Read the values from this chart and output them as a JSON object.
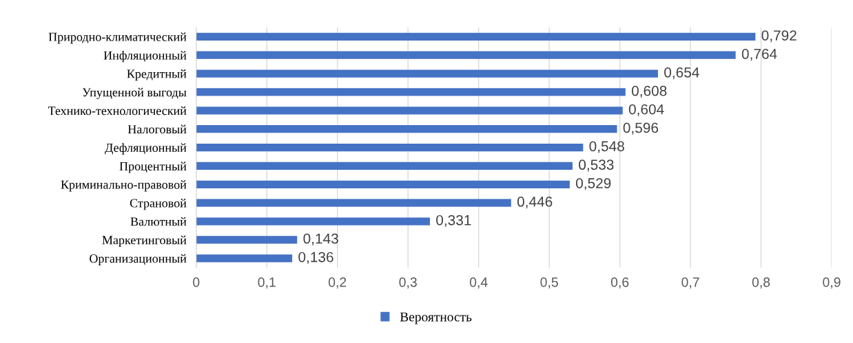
{
  "chart_data": {
    "type": "bar",
    "orientation": "horizontal",
    "categories": [
      "Природно-климатический",
      "Инфляционный",
      "Кредитный",
      "Упущенной выгоды",
      "Технико-технологический",
      "Налоговый",
      "Дефляционный",
      "Процентный",
      "Криминально-правовой",
      "Страновой",
      "Валютный",
      "Маркетинговый",
      "Организационный"
    ],
    "series": [
      {
        "name": "Вероятность",
        "color": "#4472c4",
        "values": [
          0.792,
          0.764,
          0.654,
          0.608,
          0.604,
          0.596,
          0.548,
          0.533,
          0.529,
          0.446,
          0.331,
          0.143,
          0.136
        ],
        "value_labels": [
          "0,792",
          "0,764",
          "0,654",
          "0,608",
          "0,604",
          "0,596",
          "0,548",
          "0,533",
          "0,529",
          "0,446",
          "0,331",
          "0,143",
          "0,136"
        ]
      }
    ],
    "xlim": [
      0,
      0.9
    ],
    "xticks": [
      0,
      {
        "value": 0.1,
        "label": "0,1"
      },
      {
        "value": 0.2,
        "label": "0,2"
      },
      {
        "value": 0.3,
        "label": "0,3"
      },
      {
        "value": 0.4,
        "label": "0,4"
      },
      {
        "value": 0.5,
        "label": "0,5"
      },
      {
        "value": 0.6,
        "label": "0,6"
      },
      {
        "value": 0.7,
        "label": "0,7"
      },
      {
        "value": 0.8,
        "label": "0,8"
      },
      {
        "value": 0.9,
        "label": "0,9"
      }
    ],
    "grid": "x",
    "legend": "bottom"
  }
}
